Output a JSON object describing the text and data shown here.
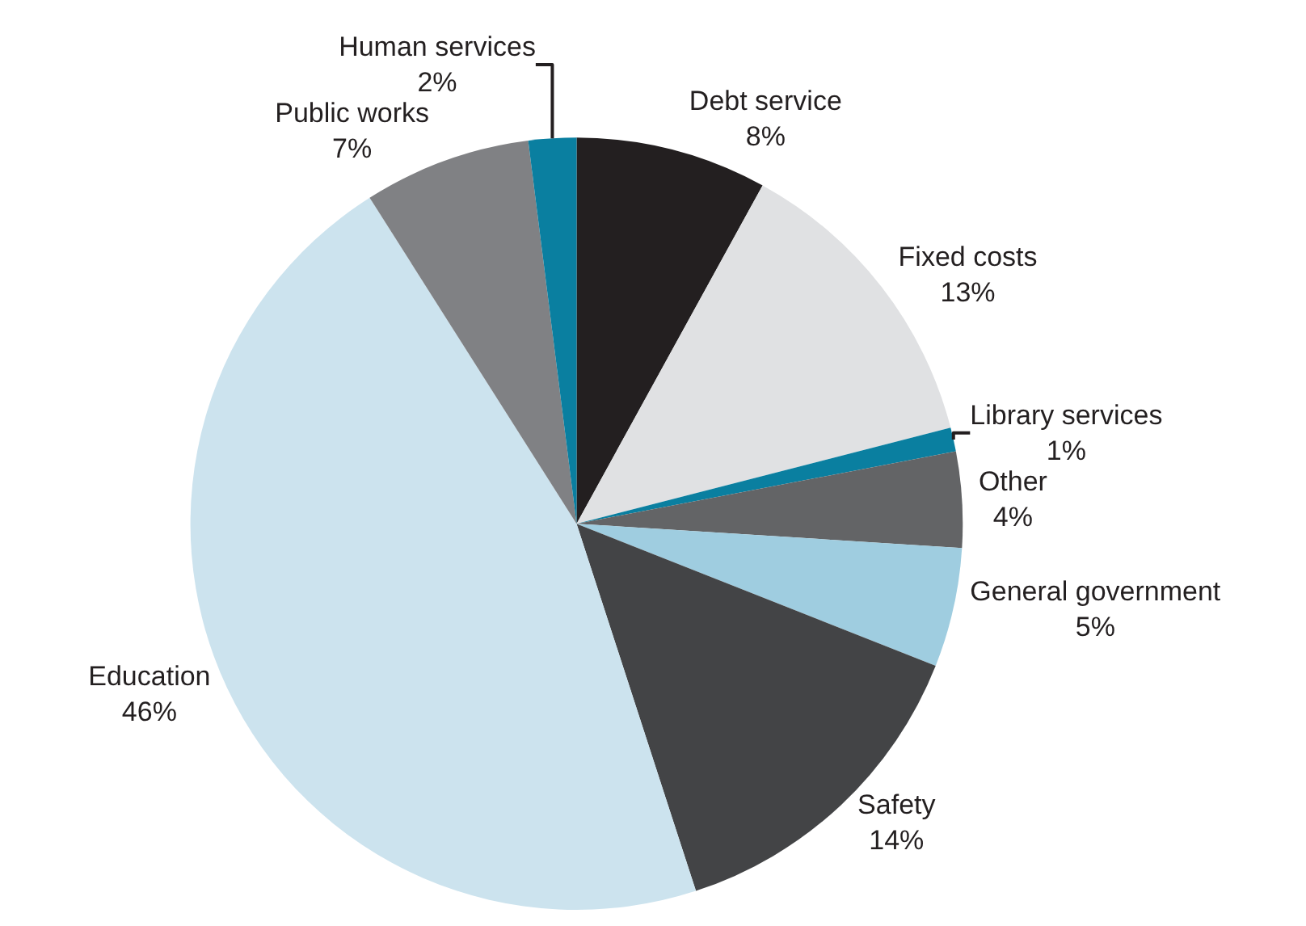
{
  "chart_data": {
    "type": "pie",
    "categories": [
      "Debt service",
      "Fixed costs",
      "Library services",
      "Other",
      "General government",
      "Safety",
      "Education",
      "Public works",
      "Human services"
    ],
    "values": [
      8,
      13,
      1,
      4,
      5,
      14,
      46,
      7,
      2
    ],
    "value_labels": [
      "8%",
      "13%",
      "1%",
      "4%",
      "5%",
      "14%",
      "46%",
      "7%",
      "2%"
    ],
    "colors": [
      "#231f20",
      "#e0e1e3",
      "#0a7fa0",
      "#636466",
      "#9fcde0",
      "#434446",
      "#cce3ee",
      "#808184",
      "#0a7fa0"
    ],
    "legend": false
  }
}
